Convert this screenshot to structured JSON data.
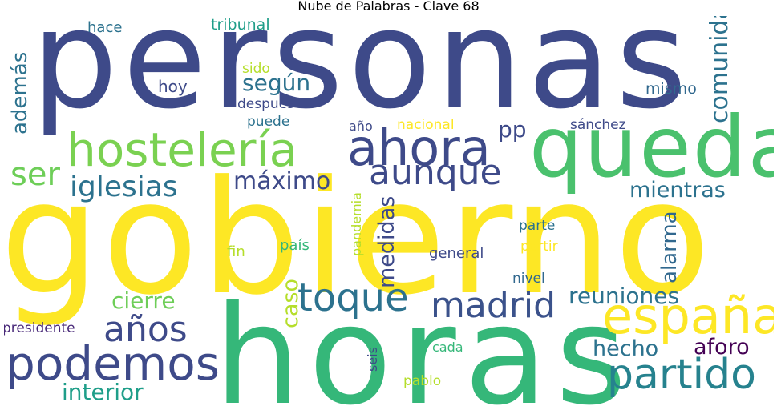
{
  "title": "Nube de Palabras - Clave 68",
  "colors": {
    "dark_blue": "#3e4a89",
    "mid_blue": "#31688e",
    "teal": "#26828e",
    "green": "#35b779",
    "light_green": "#6ece58",
    "lime": "#b5de2b",
    "yellow": "#fde725",
    "purple": "#482878",
    "dark_purple": "#440154"
  },
  "words": [
    {
      "text": "personas",
      "color": "#3e4a89"
    },
    {
      "text": "gobierno",
      "color": "#fde725"
    },
    {
      "text": "horas",
      "color": "#35b779"
    },
    {
      "text": "queda",
      "color": "#4ac16d"
    },
    {
      "text": "hostelería",
      "color": "#7ad151"
    },
    {
      "text": "ahora",
      "color": "#3e4a89"
    },
    {
      "text": "aunque",
      "color": "#3e4a89"
    },
    {
      "text": "españa",
      "color": "#fde725"
    },
    {
      "text": "partido",
      "color": "#26828e"
    },
    {
      "text": "podemos",
      "color": "#3e4a89"
    },
    {
      "text": "madrid",
      "color": "#3b528b"
    },
    {
      "text": "toque",
      "color": "#2c728e"
    },
    {
      "text": "años",
      "color": "#3e4a89"
    },
    {
      "text": "ser",
      "color": "#6ece58"
    },
    {
      "text": "iglesias",
      "color": "#2c728e"
    },
    {
      "text": "máximo",
      "color": "#3e4a89"
    },
    {
      "text": "comunidad",
      "color": "#2c728e"
    },
    {
      "text": "según",
      "color": "#2c728e"
    },
    {
      "text": "además",
      "color": "#2c728e"
    },
    {
      "text": "mientras",
      "color": "#2c728e"
    },
    {
      "text": "reuniones",
      "color": "#2c728e"
    },
    {
      "text": "medidas",
      "color": "#3e4a89"
    },
    {
      "text": "alarma",
      "color": "#31688e"
    },
    {
      "text": "cierre",
      "color": "#6ece58"
    },
    {
      "text": "caso",
      "color": "#b5de2b"
    },
    {
      "text": "interior",
      "color": "#1f9e89"
    },
    {
      "text": "hecho",
      "color": "#2c728e"
    },
    {
      "text": "aforo",
      "color": "#440154"
    },
    {
      "text": "pp",
      "color": "#3e4a89"
    },
    {
      "text": "hace",
      "color": "#2c728e"
    },
    {
      "text": "tribunal",
      "color": "#1f9e89"
    },
    {
      "text": "sido",
      "color": "#b5de2b"
    },
    {
      "text": "hoy",
      "color": "#3e4a89"
    },
    {
      "text": "después",
      "color": "#3e4a89"
    },
    {
      "text": "puede",
      "color": "#2c728e"
    },
    {
      "text": "mismo",
      "color": "#31688e"
    },
    {
      "text": "año",
      "color": "#3e4a89"
    },
    {
      "text": "nacional",
      "color": "#fde725"
    },
    {
      "text": "sánchez",
      "color": "#3e4a89"
    },
    {
      "text": "pandemia",
      "color": "#b5de2b"
    },
    {
      "text": "país",
      "color": "#35b779"
    },
    {
      "text": "fin",
      "color": "#b5de2b"
    },
    {
      "text": "general",
      "color": "#3e4a89"
    },
    {
      "text": "parte",
      "color": "#2c728e"
    },
    {
      "text": "partir",
      "color": "#fde725"
    },
    {
      "text": "nivel",
      "color": "#31688e"
    },
    {
      "text": "presidente",
      "color": "#482878"
    },
    {
      "text": "seis",
      "color": "#3e4a89"
    },
    {
      "text": "cada",
      "color": "#35b779"
    },
    {
      "text": "pablo",
      "color": "#b5de2b"
    }
  ]
}
